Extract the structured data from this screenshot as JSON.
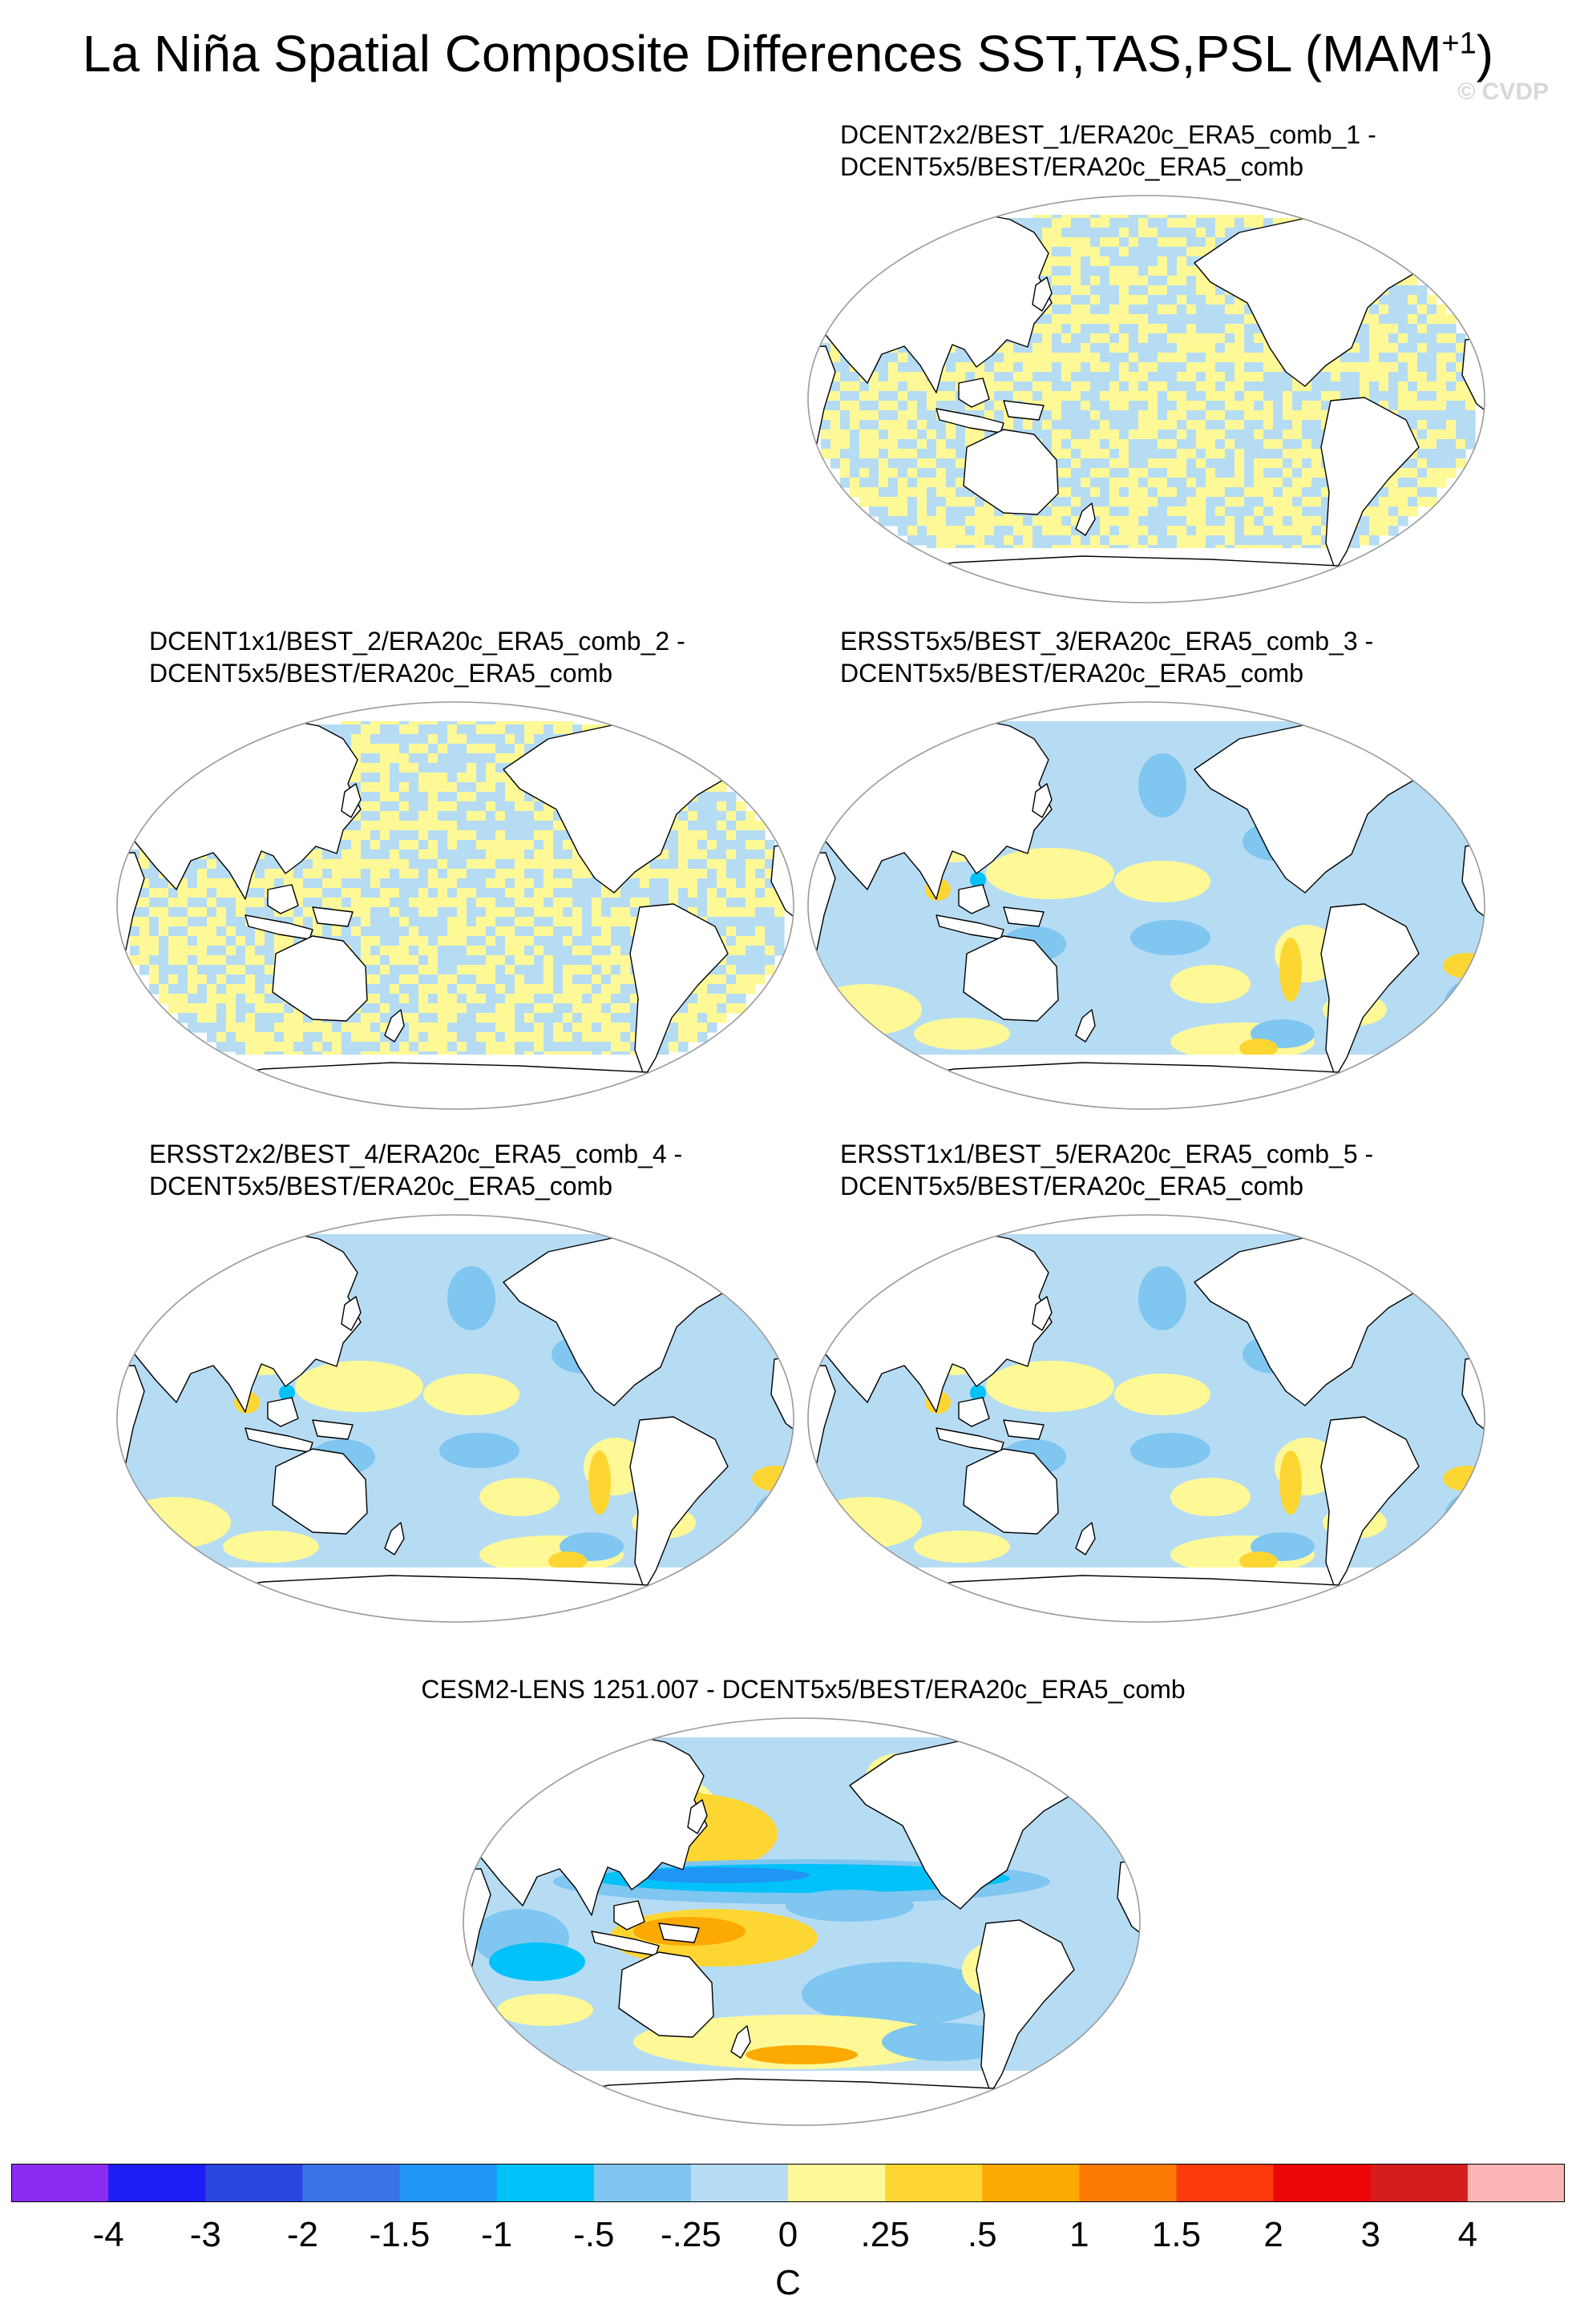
{
  "figure": {
    "title": "La Niña Spatial Composite Differences SST,TAS,PSL (MAM",
    "title_superscript": "+1",
    "title_close": ")",
    "watermark": "© CVDP"
  },
  "chart_data": {
    "type": "heatmap",
    "projection": "Robinson (global, Pacific-centered)",
    "variable_units": "C",
    "colorbar": {
      "levels": [
        "-4",
        "-3",
        "-2",
        "-1.5",
        "-1",
        "-.5",
        "-.25",
        "0",
        ".25",
        ".5",
        "1",
        "1.5",
        "2",
        "3",
        "4"
      ],
      "colors": [
        "#8c2cf0",
        "#1d1df5",
        "#2b46dc",
        "#3a73e8",
        "#1f95f5",
        "#00c2f8",
        "#7fc6f0",
        "#b6dcf4",
        "#fef996",
        "#fed633",
        "#fca903",
        "#fd7a04",
        "#fc3a0a",
        "#ec0606",
        "#d51d1d",
        "#fcb5b5"
      ],
      "units": "C"
    },
    "panels": [
      {
        "id": "p1",
        "line1": "DCENT2x2/BEST_1/ERA20c_ERA5_comb_1 -",
        "line2": "DCENT5x5/BEST/ERA20c_ERA5_comb",
        "pattern": "checker",
        "dominant_range": "-.25 to .25"
      },
      {
        "id": "p2",
        "line1": "DCENT1x1/BEST_2/ERA20c_ERA5_comb_2 -",
        "line2": "DCENT5x5/BEST/ERA20c_ERA5_comb",
        "pattern": "checker",
        "dominant_range": "-.25 to .25"
      },
      {
        "id": "p3",
        "line1": "ERSST5x5/BEST_3/ERA20c_ERA5_comb_3 -",
        "line2": "DCENT5x5/BEST/ERA20c_ERA5_comb",
        "pattern": "smooth",
        "dominant_range": "-.5 to .5"
      },
      {
        "id": "p4",
        "line1": "ERSST2x2/BEST_4/ERA20c_ERA5_comb_4 -",
        "line2": "DCENT5x5/BEST/ERA20c_ERA5_comb",
        "pattern": "smooth",
        "dominant_range": "-.5 to .5"
      },
      {
        "id": "p5",
        "line1": "ERSST1x1/BEST_5/ERA20c_ERA5_comb_5 -",
        "line2": "DCENT5x5/BEST/ERA20c_ERA5_comb",
        "pattern": "smooth",
        "dominant_range": "-.5 to .5"
      },
      {
        "id": "p6",
        "line1": "CESM2-LENS 1251.007 - DCENT5x5/BEST/ERA20c_ERA5_comb",
        "line2": "",
        "pattern": "enso",
        "dominant_range": "-1 to 1"
      }
    ]
  }
}
